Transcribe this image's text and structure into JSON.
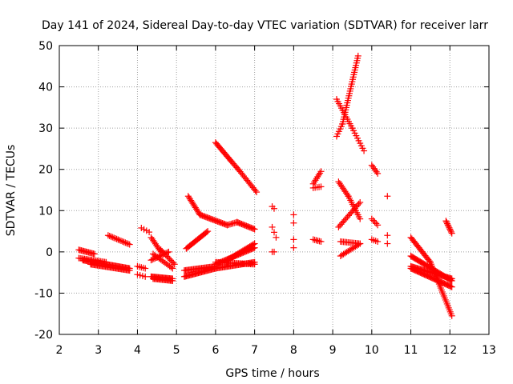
{
  "chart_data": {
    "type": "scatter",
    "title": "Day 141 of 2024, Sidereal Day-to-day VTEC variation (SDTVAR) for receiver larr",
    "xlabel": "GPS time / hours",
    "ylabel": "SDTVAR / TECUs",
    "xlim": [
      2,
      13
    ],
    "ylim": [
      -20,
      50
    ],
    "xticks": [
      "2",
      "3",
      "4",
      "5",
      "6",
      "7",
      "8",
      "9",
      "10",
      "11",
      "12",
      "13"
    ],
    "yticks": [
      "50",
      "40",
      "30",
      "20",
      "10",
      "0",
      "-10",
      "-20"
    ],
    "grid": true,
    "marker": "plus",
    "marker_color": "#ff0000",
    "segments": [
      {
        "x": [
          2.5,
          2.9
        ],
        "y": [
          0.5,
          -0.5
        ],
        "n": 14
      },
      {
        "x": [
          2.5,
          3.2
        ],
        "y": [
          -1.5,
          -2.5
        ],
        "n": 20
      },
      {
        "x": [
          2.6,
          3.8
        ],
        "y": [
          -2.0,
          -4.0
        ],
        "n": 45
      },
      {
        "x": [
          2.8,
          3.8
        ],
        "y": [
          -3.0,
          -4.5
        ],
        "n": 35
      },
      {
        "x": [
          3.25,
          3.8
        ],
        "y": [
          4.0,
          1.8
        ],
        "n": 16
      },
      {
        "x": [
          4.0,
          4.2
        ],
        "y": [
          -3.5,
          -4.0
        ],
        "n": 5
      },
      {
        "x": [
          4.1,
          4.3
        ],
        "y": [
          5.8,
          4.8
        ],
        "n": 4
      },
      {
        "x": [
          4.0,
          4.2
        ],
        "y": [
          -5.5,
          -6.0
        ],
        "n": 4
      },
      {
        "x": [
          4.35,
          4.9
        ],
        "y": [
          -6.0,
          -6.5
        ],
        "n": 22
      },
      {
        "x": [
          4.4,
          4.9
        ],
        "y": [
          -6.5,
          -7.0
        ],
        "n": 18
      },
      {
        "x": [
          4.35,
          4.8
        ],
        "y": [
          -2.0,
          0.0
        ],
        "n": 14
      },
      {
        "x": [
          4.4,
          4.9
        ],
        "y": [
          -0.5,
          -4.0
        ],
        "n": 14
      },
      {
        "x": [
          4.35,
          4.6
        ],
        "y": [
          3.5,
          0.0
        ],
        "n": 10
      },
      {
        "x": [
          4.6,
          4.95
        ],
        "y": [
          0.5,
          -3.0
        ],
        "n": 12
      },
      {
        "x": [
          5.2,
          6.0
        ],
        "y": [
          -6.0,
          -4.0
        ],
        "n": 30
      },
      {
        "x": [
          5.2,
          6.0
        ],
        "y": [
          -4.5,
          -3.5
        ],
        "n": 28
      },
      {
        "x": [
          5.25,
          5.8
        ],
        "y": [
          0.8,
          5.0
        ],
        "n": 20
      },
      {
        "x": [
          5.3,
          5.6
        ],
        "y": [
          13.5,
          9.0
        ],
        "n": 14
      },
      {
        "x": [
          5.6,
          6.3
        ],
        "y": [
          9.0,
          6.5
        ],
        "n": 24
      },
      {
        "x": [
          6.3,
          6.55
        ],
        "y": [
          6.5,
          7.2
        ],
        "n": 8
      },
      {
        "x": [
          6.55,
          7.0
        ],
        "y": [
          7.2,
          5.5
        ],
        "n": 16
      },
      {
        "x": [
          6.0,
          7.0
        ],
        "y": [
          -4.0,
          -2.5
        ],
        "n": 35
      },
      {
        "x": [
          6.0,
          7.0
        ],
        "y": [
          -3.0,
          1.0
        ],
        "n": 35
      },
      {
        "x": [
          6.3,
          7.0
        ],
        "y": [
          -2.0,
          2.0
        ],
        "n": 24
      },
      {
        "x": [
          6.0,
          7.0
        ],
        "y": [
          -2.5,
          -3.0
        ],
        "n": 30
      },
      {
        "x": [
          6.0,
          6.4
        ],
        "y": [
          26.5,
          22.0
        ],
        "n": 16
      },
      {
        "x": [
          6.4,
          6.6
        ],
        "y": [
          22.0,
          19.8
        ],
        "n": 8
      },
      {
        "x": [
          6.6,
          7.05
        ],
        "y": [
          19.8,
          14.5
        ],
        "n": 16
      },
      {
        "x": [
          7.45,
          7.5
        ],
        "y": [
          11.0,
          10.5
        ],
        "n": 2
      },
      {
        "x": [
          7.45,
          7.55
        ],
        "y": [
          6.0,
          3.5
        ],
        "n": 3
      },
      {
        "x": [
          7.45,
          7.5
        ],
        "y": [
          0.0,
          0.0
        ],
        "n": 2
      },
      {
        "x": [
          8.0,
          8.0
        ],
        "y": [
          9.0,
          7.0
        ],
        "n": 2
      },
      {
        "x": [
          8.0,
          8.0
        ],
        "y": [
          3.0,
          1.0
        ],
        "n": 2
      },
      {
        "x": [
          8.5,
          8.7
        ],
        "y": [
          16.5,
          19.5
        ],
        "n": 8
      },
      {
        "x": [
          8.5,
          8.7
        ],
        "y": [
          15.5,
          15.8
        ],
        "n": 5
      },
      {
        "x": [
          8.5,
          8.7
        ],
        "y": [
          3.0,
          2.5
        ],
        "n": 6
      },
      {
        "x": [
          9.1,
          9.5
        ],
        "y": [
          37.0,
          30.0
        ],
        "n": 14
      },
      {
        "x": [
          9.5,
          9.8
        ],
        "y": [
          30.0,
          24.5
        ],
        "n": 10
      },
      {
        "x": [
          9.1,
          9.25
        ],
        "y": [
          28.0,
          31.0
        ],
        "n": 6
      },
      {
        "x": [
          9.25,
          9.65
        ],
        "y": [
          31.0,
          47.5
        ],
        "n": 30
      },
      {
        "x": [
          9.15,
          9.4
        ],
        "y": [
          17.0,
          13.5
        ],
        "n": 10
      },
      {
        "x": [
          9.4,
          9.7
        ],
        "y": [
          13.5,
          8.0
        ],
        "n": 12
      },
      {
        "x": [
          9.15,
          9.7
        ],
        "y": [
          6.0,
          12.0
        ],
        "n": 18
      },
      {
        "x": [
          9.2,
          9.7
        ],
        "y": [
          2.5,
          2.0
        ],
        "n": 14
      },
      {
        "x": [
          9.2,
          9.7
        ],
        "y": [
          -1.0,
          2.0
        ],
        "n": 14
      },
      {
        "x": [
          10.0,
          10.15
        ],
        "y": [
          21.0,
          19.0
        ],
        "n": 6
      },
      {
        "x": [
          10.0,
          10.15
        ],
        "y": [
          8.0,
          6.5
        ],
        "n": 5
      },
      {
        "x": [
          10.0,
          10.15
        ],
        "y": [
          3.0,
          2.5
        ],
        "n": 4
      },
      {
        "x": [
          10.4,
          10.4
        ],
        "y": [
          13.5,
          13.5
        ],
        "n": 1
      },
      {
        "x": [
          10.4,
          10.4
        ],
        "y": [
          4.0,
          2.0
        ],
        "n": 2
      },
      {
        "x": [
          11.0,
          11.5
        ],
        "y": [
          3.5,
          -2.5
        ],
        "n": 20
      },
      {
        "x": [
          11.5,
          12.05
        ],
        "y": [
          -2.5,
          -15.5
        ],
        "n": 28
      },
      {
        "x": [
          11.0,
          12.05
        ],
        "y": [
          -1.0,
          -7.0
        ],
        "n": 40
      },
      {
        "x": [
          11.0,
          12.05
        ],
        "y": [
          -3.5,
          -6.5
        ],
        "n": 40
      },
      {
        "x": [
          11.0,
          12.05
        ],
        "y": [
          -4.0,
          -8.5
        ],
        "n": 40
      },
      {
        "x": [
          11.9,
          12.05
        ],
        "y": [
          7.5,
          4.5
        ],
        "n": 10
      }
    ]
  }
}
